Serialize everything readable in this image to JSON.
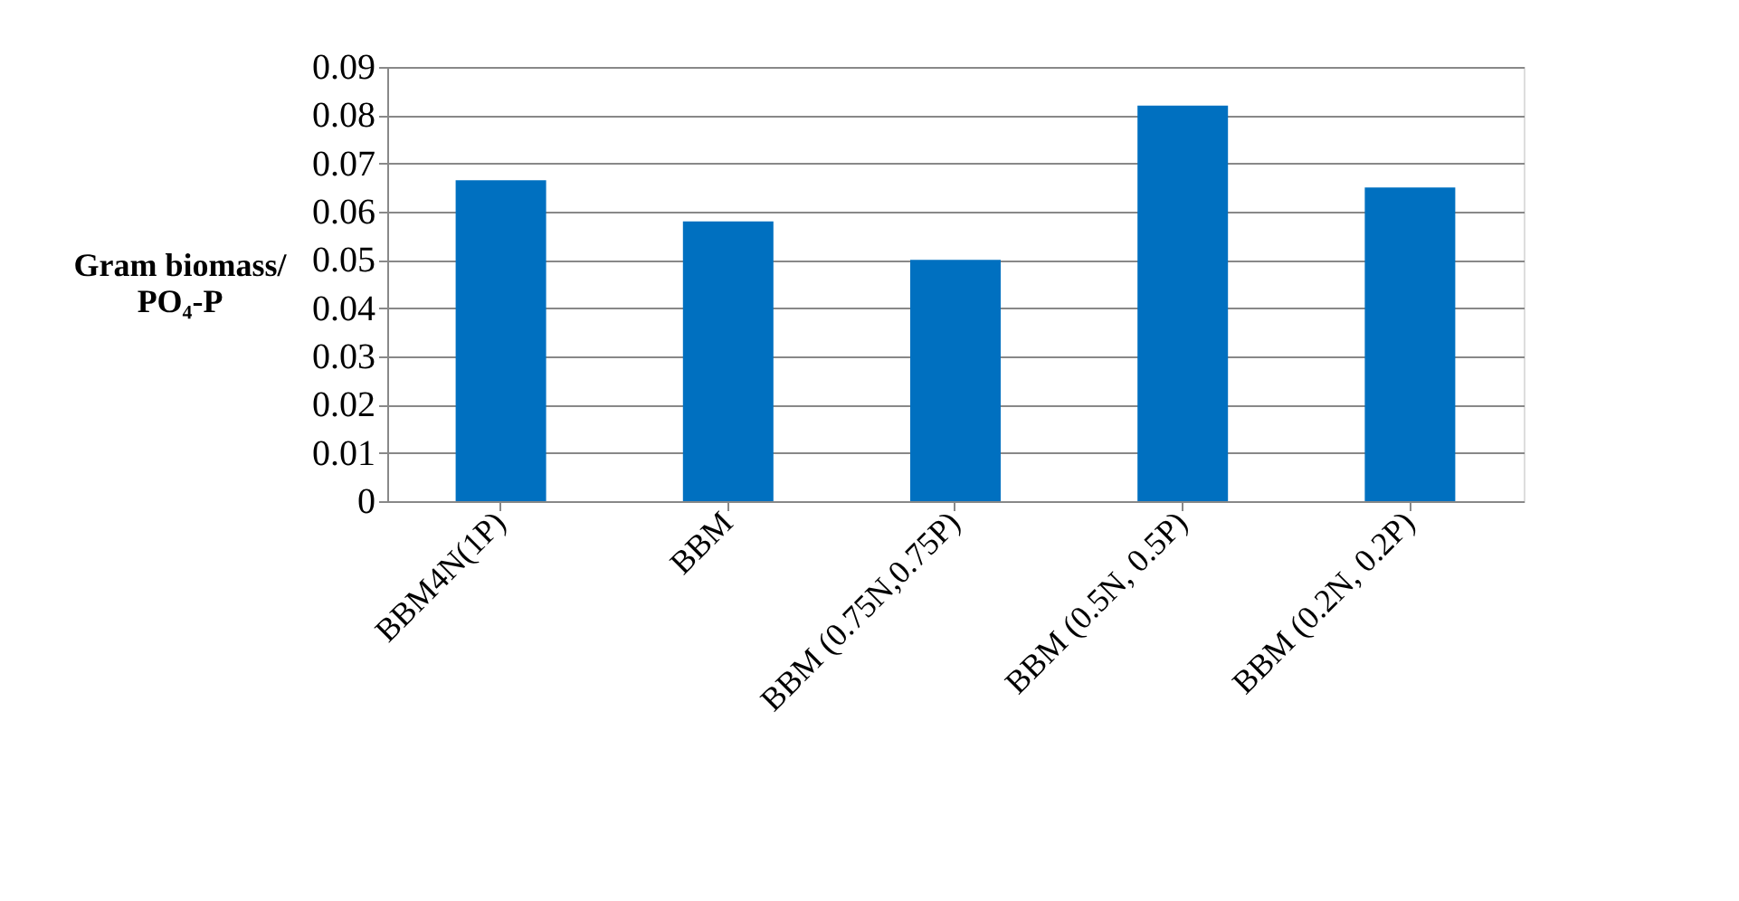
{
  "chart_data": {
    "type": "bar",
    "ylabel": "Gram biomass/ PO₄-P",
    "categories": [
      "BBM4N(1P)",
      "BBM",
      "BBM (0.75N,0.75P)",
      "BBM (0.5N, 0.5P)",
      "BBM (0.2N, 0.2P)"
    ],
    "values": [
      0.0665,
      0.058,
      0.05,
      0.082,
      0.065
    ],
    "color": "#0070c0",
    "ylim": [
      0,
      0.09
    ],
    "yticks": [
      0,
      0.01,
      0.02,
      0.03,
      0.04,
      0.05,
      0.06,
      0.07,
      0.08,
      0.09
    ],
    "grid": "y"
  }
}
